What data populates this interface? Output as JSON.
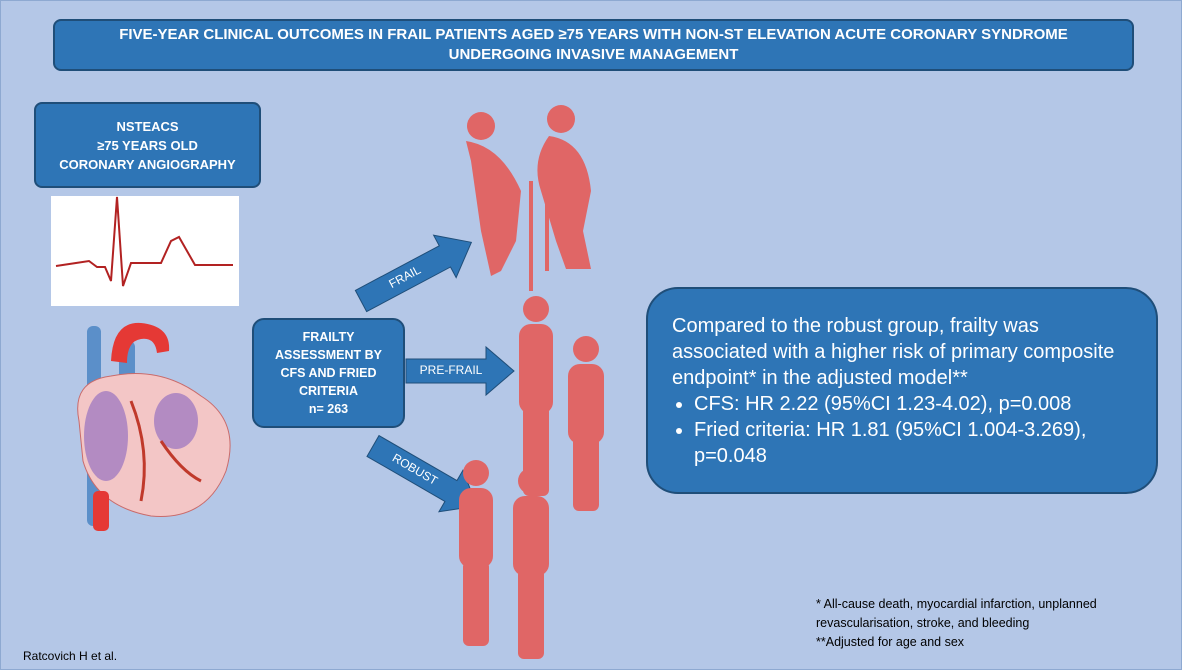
{
  "title": "FIVE-YEAR CLINICAL OUTCOMES IN FRAIL PATIENTS AGED ≥75 YEARS WITH NON-ST ELEVATION ACUTE CORONARY SYNDROME UNDERGOING INVASIVE MANAGEMENT",
  "population": [
    "NSTEACS",
    "≥75 YEARS OLD",
    "CORONARY ANGIOGRAPHY"
  ],
  "assessment": {
    "label": "FRAILTY ASSESSMENT BY CFS AND FRIED CRITERIA",
    "n": "n= 263"
  },
  "groups": [
    "FRAIL",
    "PRE-FRAIL",
    "ROBUST"
  ],
  "results": {
    "summary": "Compared to the robust group, frailty was associated with a higher risk of primary composite endpoint* in the adjusted model**",
    "bullets": [
      "CFS: HR 2.22 (95%CI 1.23-4.02), p=0.008",
      "Fried criteria: HR 1.81 (95%CI 1.004-3.269), p=0.048"
    ]
  },
  "footnotes": [
    "* All-cause death, myocardial infarction, unplanned revascularisation, stroke, and bleeding",
    "**Adjusted for age and sex"
  ],
  "credit": "Ratcovich H et al."
}
